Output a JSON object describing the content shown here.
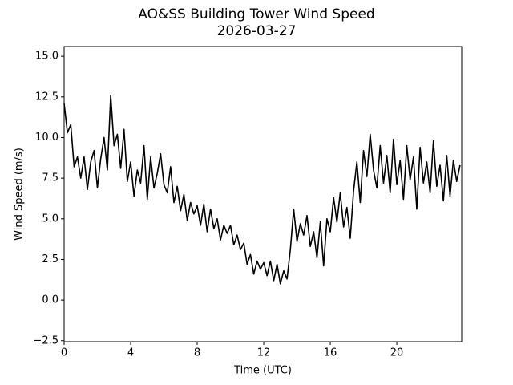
{
  "chart_data": {
    "type": "line",
    "title": "AO&SS Building Tower Wind Speed",
    "subtitle": "2026-03-27",
    "x_label": "Time (UTC)",
    "y_label": "Wind Speed (m/s)",
    "xlim": [
      0,
      23.9
    ],
    "ylim": [
      -2.56,
      15.6
    ],
    "xticks": [
      0,
      4,
      8,
      12,
      16,
      20
    ],
    "yticks": [
      {
        "value": -2.5,
        "label": "−2.5"
      },
      {
        "value": 0,
        "label": "0.0"
      },
      {
        "value": 2.5,
        "label": "2.5"
      },
      {
        "value": 5,
        "label": "5.0"
      },
      {
        "value": 7.5,
        "label": "7.5"
      },
      {
        "value": 10,
        "label": "10.0"
      },
      {
        "value": 12.5,
        "label": "12.5"
      },
      {
        "value": 15,
        "label": "15.0"
      }
    ],
    "series": [
      {
        "color": "#000000",
        "x": [
          0.0,
          0.2,
          0.4,
          0.6,
          0.8,
          1.0,
          1.2,
          1.4,
          1.6,
          1.8,
          2.0,
          2.2,
          2.4,
          2.6,
          2.8,
          3.0,
          3.2,
          3.4,
          3.6,
          3.8,
          4.0,
          4.2,
          4.4,
          4.6,
          4.8,
          5.0,
          5.2,
          5.4,
          5.6,
          5.8,
          6.0,
          6.2,
          6.4,
          6.6,
          6.8,
          7.0,
          7.2,
          7.4,
          7.6,
          7.8,
          8.0,
          8.2,
          8.4,
          8.6,
          8.8,
          9.0,
          9.2,
          9.4,
          9.6,
          9.8,
          10.0,
          10.2,
          10.4,
          10.6,
          10.8,
          11.0,
          11.2,
          11.4,
          11.6,
          11.8,
          12.0,
          12.2,
          12.4,
          12.6,
          12.8,
          13.0,
          13.2,
          13.4,
          13.6,
          13.8,
          14.0,
          14.2,
          14.4,
          14.6,
          14.8,
          15.0,
          15.2,
          15.4,
          15.6,
          15.8,
          16.0,
          16.2,
          16.4,
          16.6,
          16.8,
          17.0,
          17.2,
          17.4,
          17.6,
          17.8,
          18.0,
          18.2,
          18.4,
          18.6,
          18.8,
          19.0,
          19.2,
          19.4,
          19.6,
          19.8,
          20.0,
          20.2,
          20.4,
          20.6,
          20.8,
          21.0,
          21.2,
          21.4,
          21.6,
          21.8,
          22.0,
          22.2,
          22.4,
          22.6,
          22.8,
          23.0,
          23.2,
          23.4,
          23.6,
          23.8
        ],
        "values": [
          12.1,
          10.3,
          10.8,
          8.2,
          8.8,
          7.5,
          8.8,
          6.8,
          8.5,
          9.2,
          6.9,
          8.7,
          10.0,
          8.0,
          12.6,
          9.5,
          10.2,
          8.1,
          10.5,
          7.3,
          8.5,
          6.4,
          8.0,
          7.2,
          9.5,
          6.2,
          8.8,
          6.9,
          7.8,
          9.0,
          7.1,
          6.6,
          8.2,
          6.0,
          7.0,
          5.5,
          6.5,
          4.9,
          6.0,
          5.3,
          5.8,
          4.6,
          5.9,
          4.2,
          5.6,
          4.4,
          5.0,
          3.7,
          4.6,
          4.1,
          4.6,
          3.4,
          4.0,
          3.1,
          3.5,
          2.2,
          2.8,
          1.6,
          2.4,
          1.9,
          2.3,
          1.5,
          2.4,
          1.2,
          2.2,
          1.0,
          1.8,
          1.3,
          3.1,
          5.6,
          3.6,
          4.7,
          4.0,
          5.2,
          3.3,
          4.2,
          2.6,
          4.8,
          2.1,
          5.0,
          4.2,
          6.3,
          4.8,
          6.6,
          4.5,
          5.7,
          3.8,
          6.7,
          8.5,
          6.0,
          9.2,
          7.6,
          10.2,
          8.0,
          6.9,
          9.5,
          7.2,
          8.9,
          6.6,
          9.9,
          7.1,
          8.6,
          6.2,
          9.5,
          7.4,
          8.8,
          5.6,
          9.4,
          7.2,
          8.5,
          6.6,
          9.8,
          7.0,
          8.3,
          6.1,
          8.9,
          6.4,
          8.6,
          7.3,
          8.3
        ]
      }
    ]
  }
}
